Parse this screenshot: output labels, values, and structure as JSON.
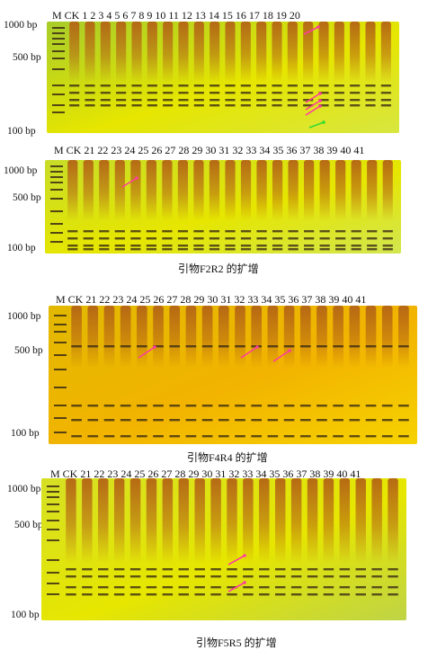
{
  "panels": [
    {
      "lane_labels": "M CK 1   2  3    4    5    6    7    8  9   10   11  12   13  14  15  16   17   18   19  20",
      "bp_top": "1000 bp",
      "bp_mid": "500 bp",
      "bp_bottom": "100 bp",
      "caption": ""
    },
    {
      "lane_labels": "M CK 21 22 23 24 25 26 27 28 29 30 31 32 33 34 35 36 37 38 39 40 41",
      "bp_top": "1000 bp",
      "bp_mid": "500 bp",
      "bp_bottom": "100 bp",
      "caption": "引物F2R2 的扩增"
    },
    {
      "lane_labels": "M CK 21 22 23 24 25 26 27 28 29 30 31 32 33 34 35 36 37 38 39 40 41",
      "bp_top": "1000 bp",
      "bp_mid": "500 bp",
      "bp_bottom": "100 bp",
      "caption": "引物F4R4 的扩增"
    },
    {
      "lane_labels": "M CK 21 22 23 24 25 26 27 28 29 30 31 32 33 34 35 36 37 38 39 40 41",
      "bp_top": "1000 bp",
      "bp_mid": "500 bp",
      "bp_bottom": "100 bp",
      "caption": "引物F5R5 的扩增"
    }
  ],
  "colors": {
    "gel_yellow": "#e6e600",
    "gel_green": "#b4d232",
    "gel_orange": "#f2b400",
    "lane_smear": "#b46414",
    "band_dark": "#3c2d14",
    "arrow_pink": "#ff3ca0",
    "arrow_green": "#32dc32"
  }
}
